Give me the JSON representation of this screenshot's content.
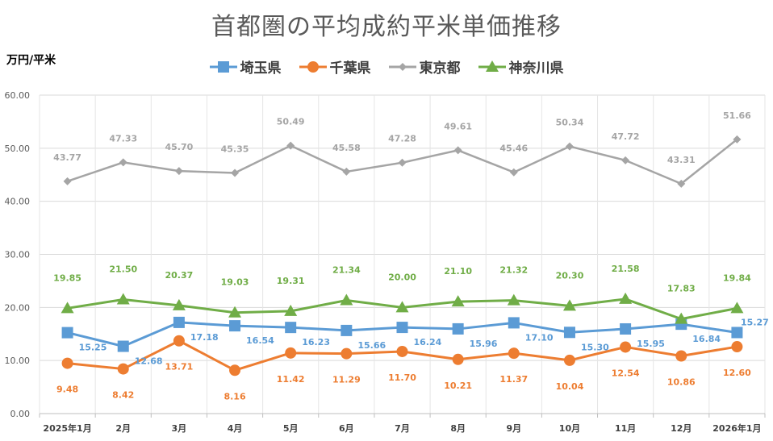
{
  "chart_data": {
    "type": "line",
    "title": "首都圏の平均成約平米単価推移",
    "ylabel": "万円/平米",
    "xlabel": "",
    "ylim": [
      0,
      60
    ],
    "yticks": [
      "0.00",
      "10.00",
      "20.00",
      "30.00",
      "40.00",
      "50.00",
      "60.00"
    ],
    "grid": true,
    "legend_position": "top",
    "categories": [
      "2025年1月",
      "2月",
      "3月",
      "4月",
      "5月",
      "6月",
      "7月",
      "8月",
      "9月",
      "10月",
      "11月",
      "12月",
      "2026年1月"
    ],
    "series": [
      {
        "name": "埼玉県",
        "color": "#5B9BD5",
        "marker": "square",
        "values": [
          15.25,
          12.68,
          17.18,
          16.54,
          16.23,
          15.66,
          16.24,
          15.96,
          17.1,
          15.3,
          15.95,
          16.84,
          15.27
        ]
      },
      {
        "name": "千葉県",
        "color": "#ED7D31",
        "marker": "circle",
        "values": [
          9.48,
          8.42,
          13.71,
          8.16,
          11.42,
          11.29,
          11.7,
          10.21,
          11.37,
          10.04,
          12.54,
          10.86,
          12.6
        ]
      },
      {
        "name": "東京都",
        "color": "#A5A5A5",
        "marker": "diamond",
        "values": [
          43.77,
          47.33,
          45.7,
          45.35,
          50.49,
          45.58,
          47.28,
          49.61,
          45.46,
          50.34,
          47.72,
          43.31,
          51.66
        ]
      },
      {
        "name": "神奈川県",
        "color": "#70AD47",
        "marker": "triangle",
        "values": [
          19.85,
          21.5,
          20.37,
          19.03,
          19.31,
          21.34,
          20.0,
          21.1,
          21.32,
          20.3,
          21.58,
          17.83,
          19.84
        ]
      }
    ]
  }
}
